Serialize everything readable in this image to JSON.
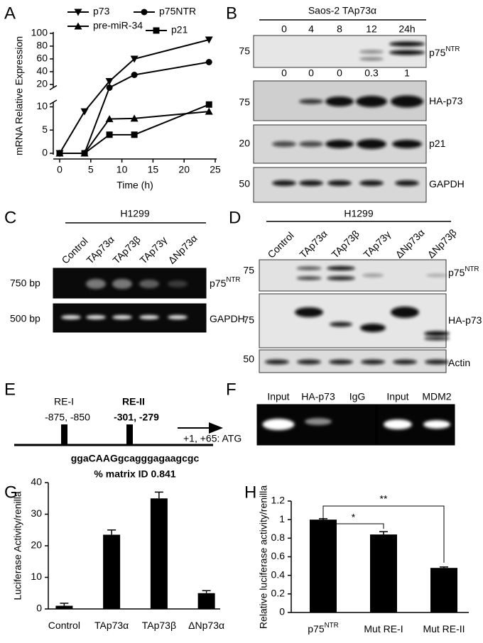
{
  "panel_labels": [
    "A",
    "B",
    "C",
    "D",
    "E",
    "F",
    "G",
    "H"
  ],
  "chart_data": [
    {
      "type": "line",
      "ylabel": "mRNA Relative Expression",
      "xlabel": "Time (h)",
      "x": [
        0,
        4,
        8,
        12,
        24
      ],
      "xlim": [
        0,
        25
      ],
      "xticks": [
        0,
        5,
        10,
        15,
        20,
        25
      ],
      "ylim": [
        0,
        100
      ],
      "y_break": [
        11,
        15
      ],
      "yticks": [
        0,
        5,
        10,
        20,
        40,
        60,
        80,
        100
      ],
      "color": "#000000",
      "series": [
        {
          "name": "p73",
          "marker": "triangle-down",
          "values": [
            0,
            9,
            25,
            60,
            90
          ]
        },
        {
          "name": "p75NTR",
          "marker": "circle",
          "values": [
            0,
            0,
            15,
            35,
            55
          ]
        },
        {
          "name": "pre-miR-34",
          "marker": "triangle-up",
          "values": [
            0,
            0,
            7.4,
            7.5,
            9
          ]
        },
        {
          "name": "p21",
          "marker": "square",
          "values": [
            0,
            0,
            4,
            4,
            10.5
          ]
        }
      ]
    },
    {
      "type": "bar",
      "ylabel": "Luciferase Activity/renilla",
      "categories": [
        {
          "text": "Control"
        },
        {
          "text": "TAp73α"
        },
        {
          "text": "TAp73β"
        },
        {
          "text": "ΔNp73α"
        }
      ],
      "values": [
        1,
        23.5,
        35,
        5
      ],
      "errors": [
        0.8,
        1.5,
        2,
        0.8
      ],
      "color": "#000000",
      "ylim": [
        0,
        40
      ],
      "yticks": [
        0,
        10,
        20,
        30,
        40
      ]
    },
    {
      "type": "bar",
      "ylabel": "Relative luciferase activity/renilla",
      "categories": [
        {
          "text": "p75",
          "sup": "NTR"
        },
        {
          "text": "Mut RE-I"
        },
        {
          "text": "Mut RE-II"
        }
      ],
      "values": [
        1,
        0.84,
        0.48
      ],
      "errors": [
        0.01,
        0.03,
        0.01
      ],
      "color": "#000000",
      "ylim": [
        0,
        1.2
      ],
      "yticks": [
        0,
        0.2,
        0.4,
        0.6,
        0.8,
        1,
        1.2
      ],
      "annotations": [
        "*",
        "**"
      ]
    }
  ],
  "blot_b": {
    "title": "Saos-2 TAp73α",
    "lanes": [
      "0",
      "4",
      "8",
      "12",
      "24h"
    ],
    "size_markers": [
      "75",
      "75",
      "20",
      "50"
    ],
    "row_labels": [
      {
        "text": "p75",
        "sup": "NTR"
      },
      {
        "text": "HA-p73"
      },
      {
        "text": "p21"
      },
      {
        "text": "GAPDH"
      }
    ],
    "quantification": [
      0,
      0,
      0,
      0.3,
      1
    ]
  },
  "gel_c": {
    "title": "H1299",
    "lanes": [
      "Control",
      "TAp73α",
      "TAp73β",
      "TAp73γ",
      "ΔNp73α"
    ],
    "size_markers": [
      "750 bp",
      "500 bp"
    ],
    "row_labels": [
      {
        "text": "p75",
        "sup": "NTR"
      },
      {
        "text": "GAPDH"
      }
    ]
  },
  "blot_d": {
    "title": "H1299",
    "lanes": [
      "Control",
      "TAp73α",
      "TAp73β",
      "TAp73γ",
      "ΔNp73α",
      "ΔNp73β"
    ],
    "size_markers": [
      "75",
      "75",
      "50"
    ],
    "row_labels": [
      {
        "text": "p75",
        "sup": "NTR"
      },
      {
        "text": "HA-p73"
      },
      {
        "text": "Actin"
      }
    ]
  },
  "diagram_e": {
    "elements": [
      {
        "label": "RE-I",
        "position": "-875, -850"
      },
      {
        "label": "RE-II",
        "position": "-301, -279"
      }
    ],
    "start": "+1, +65: ATG",
    "sequence": "ggaCAAGgcagggagaagcgc",
    "matrix": "% matrix ID 0.841"
  },
  "gel_f": {
    "lanes": [
      "Input",
      "HA-p73",
      "IgG",
      "Input",
      "MDM2"
    ]
  }
}
